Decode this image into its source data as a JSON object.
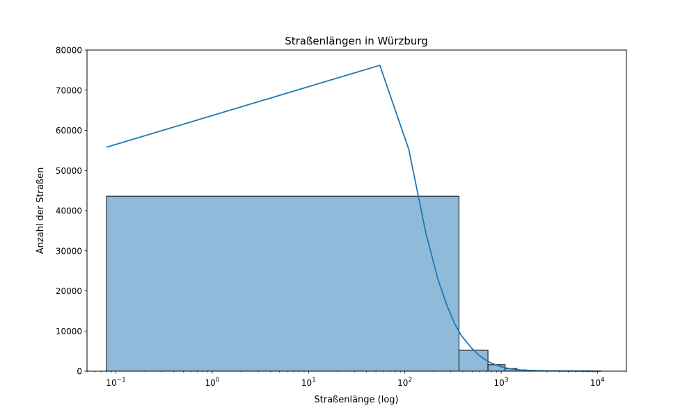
{
  "chart_data": {
    "type": "bar",
    "title": "Straßenlängen in Würzburg",
    "xlabel": "Straßenlänge (log)",
    "ylabel": "Anzahl der Straßen",
    "xscale": "log",
    "xlim": [
      0.05,
      20000
    ],
    "ylim": [
      0,
      80000
    ],
    "grid": false,
    "legend": "none",
    "x_ticks": [
      {
        "value": 0.1,
        "base": "10",
        "exp": "−1"
      },
      {
        "value": 1,
        "base": "10",
        "exp": "0"
      },
      {
        "value": 10,
        "base": "10",
        "exp": "1"
      },
      {
        "value": 100,
        "base": "10",
        "exp": "2"
      },
      {
        "value": 1000,
        "base": "10",
        "exp": "3"
      },
      {
        "value": 10000,
        "base": "10",
        "exp": "4"
      }
    ],
    "y_ticks": [
      "0",
      "10000",
      "20000",
      "30000",
      "40000",
      "50000",
      "60000",
      "70000",
      "80000"
    ],
    "bins": [
      {
        "x0": 0.08,
        "x1": 365,
        "count": 43600
      },
      {
        "x0": 365,
        "x1": 730,
        "count": 5200
      },
      {
        "x0": 730,
        "x1": 1100,
        "count": 1600
      },
      {
        "x0": 1100,
        "x1": 1460,
        "count": 650
      },
      {
        "x0": 1460,
        "x1": 1830,
        "count": 300
      },
      {
        "x0": 1830,
        "x1": 2190,
        "count": 160
      },
      {
        "x0": 2190,
        "x1": 2560,
        "count": 90
      },
      {
        "x0": 2560,
        "x1": 2920,
        "count": 60
      },
      {
        "x0": 2920,
        "x1": 3290,
        "count": 40
      },
      {
        "x0": 3290,
        "x1": 3650,
        "count": 30
      },
      {
        "x0": 3650,
        "x1": 4020,
        "count": 20
      },
      {
        "x0": 4020,
        "x1": 4380,
        "count": 15
      },
      {
        "x0": 4380,
        "x1": 4750,
        "count": 12
      },
      {
        "x0": 4750,
        "x1": 5110,
        "count": 10
      },
      {
        "x0": 5110,
        "x1": 5480,
        "count": 8
      },
      {
        "x0": 5480,
        "x1": 5840,
        "count": 6
      },
      {
        "x0": 5840,
        "x1": 6210,
        "count": 5
      },
      {
        "x0": 6210,
        "x1": 6570,
        "count": 4
      },
      {
        "x0": 6570,
        "x1": 6940,
        "count": 3
      },
      {
        "x0": 6940,
        "x1": 7300,
        "count": 3
      },
      {
        "x0": 7300,
        "x1": 7670,
        "count": 2
      },
      {
        "x0": 7670,
        "x1": 8030,
        "count": 2
      },
      {
        "x0": 8030,
        "x1": 8400,
        "count": 2
      },
      {
        "x0": 8400,
        "x1": 8760,
        "count": 1
      },
      {
        "x0": 8760,
        "x1": 9130,
        "count": 1
      },
      {
        "x0": 9130,
        "x1": 9490,
        "count": 1
      },
      {
        "x0": 9490,
        "x1": 9860,
        "count": 1
      },
      {
        "x0": 9860,
        "x1": 10220,
        "count": 1
      },
      {
        "x0": 10220,
        "x1": 10600,
        "count": 1
      },
      {
        "x0": 10600,
        "x1": 10960,
        "count": 1
      }
    ],
    "kde": {
      "x": [
        0.08,
        55,
        110,
        165,
        220,
        275,
        330,
        385,
        440,
        500,
        600,
        700,
        800,
        900,
        1000,
        1200,
        1400,
        1600,
        1800,
        2000,
        2500,
        3000,
        4000,
        5000,
        6000,
        8000,
        10000,
        11000
      ],
      "y": [
        55800,
        76200,
        55200,
        34500,
        23000,
        16200,
        11800,
        8900,
        7200,
        5600,
        3800,
        2700,
        1950,
        1450,
        1100,
        650,
        420,
        300,
        220,
        170,
        100,
        70,
        40,
        25,
        18,
        10,
        6,
        5
      ]
    },
    "bar_color": "#8fbad9",
    "bar_edge_color": "#000000",
    "line_color": "#1f77b4"
  }
}
